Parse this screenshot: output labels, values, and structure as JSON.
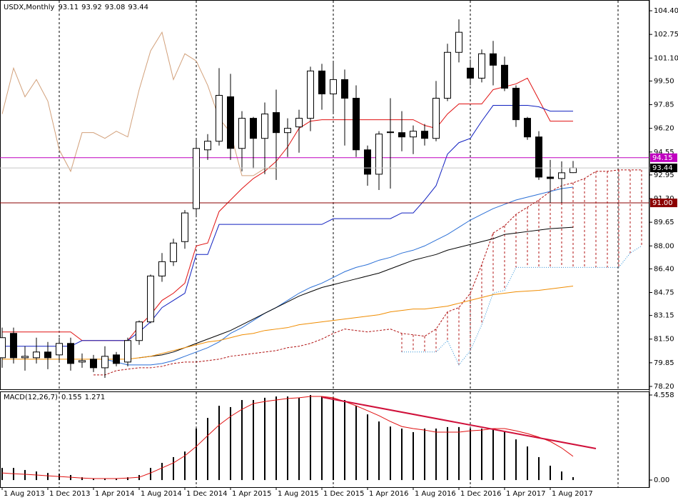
{
  "chart_data": {
    "type": "candlestick",
    "title": "USDX,Monthly",
    "categories": [
      "1 Aug 2013",
      null,
      null,
      null,
      "1 Dec 2013",
      null,
      null,
      null,
      "1 Apr 2014",
      null,
      null,
      null,
      "1 Aug 2014",
      null,
      null,
      null,
      "1 Dec 2014",
      null,
      null,
      null,
      "1 Apr 2015",
      null,
      null,
      null,
      "1 Aug 2015",
      null,
      null,
      null,
      "1 Dec 2015",
      null,
      null,
      null,
      "1 Apr 2016",
      null,
      null,
      null,
      "1 Aug 2016",
      null,
      null,
      null,
      "1 Dec 2016",
      null,
      null,
      null,
      "1 Apr 2017",
      null,
      null,
      null,
      "1 Aug 2017",
      null,
      null,
      null,
      null,
      null,
      null,
      null,
      null
    ],
    "candles": [
      [
        80.2,
        82.3,
        79.5,
        81.6
      ],
      [
        81.9,
        82.3,
        79.8,
        80.2
      ],
      [
        80.2,
        81.0,
        79.3,
        80.3
      ],
      [
        80.2,
        81.6,
        79.8,
        80.6
      ],
      [
        80.6,
        81.3,
        79.4,
        80.2
      ],
      [
        80.4,
        81.6,
        80.0,
        81.2
      ],
      [
        81.2,
        81.6,
        79.3,
        79.8
      ],
      [
        79.9,
        80.5,
        79.5,
        80.0
      ],
      [
        80.1,
        80.4,
        79.2,
        79.5
      ],
      [
        79.5,
        81.0,
        78.8,
        80.3
      ],
      [
        80.4,
        80.6,
        79.6,
        79.8
      ],
      [
        79.9,
        81.6,
        79.6,
        81.4
      ],
      [
        81.4,
        82.8,
        81.1,
        82.7
      ],
      [
        82.7,
        86.0,
        82.6,
        85.9
      ],
      [
        85.9,
        87.5,
        85.5,
        86.9
      ],
      [
        86.9,
        88.5,
        86.6,
        88.2
      ],
      [
        88.3,
        90.5,
        87.8,
        90.3
      ],
      [
        90.6,
        95.5,
        90.0,
        94.8
      ],
      [
        94.7,
        95.8,
        94.0,
        95.3
      ],
      [
        95.3,
        100.4,
        95.0,
        98.5
      ],
      [
        98.4,
        100.0,
        94.0,
        94.8
      ],
      [
        94.8,
        97.4,
        93.2,
        96.9
      ],
      [
        96.9,
        97.0,
        93.4,
        95.5
      ],
      [
        95.5,
        98.0,
        93.0,
        97.2
      ],
      [
        97.3,
        98.9,
        92.6,
        95.9
      ],
      [
        95.9,
        96.9,
        94.2,
        96.2
      ],
      [
        96.3,
        97.5,
        94.5,
        96.9
      ],
      [
        96.9,
        100.5,
        96.0,
        100.2
      ],
      [
        100.2,
        100.7,
        97.5,
        98.6
      ],
      [
        98.6,
        100.9,
        97.3,
        99.6
      ],
      [
        99.6,
        100.3,
        95.0,
        98.3
      ],
      [
        98.3,
        99.2,
        94.2,
        94.7
      ],
      [
        94.7,
        95.0,
        92.2,
        93.0
      ],
      [
        93.0,
        96.0,
        91.9,
        95.8
      ],
      [
        95.9,
        98.3,
        92.0,
        95.95
      ],
      [
        95.9,
        97.4,
        94.6,
        95.6
      ],
      [
        95.6,
        96.4,
        94.4,
        96.0
      ],
      [
        96.0,
        96.5,
        95.0,
        95.5
      ],
      [
        95.5,
        99.5,
        95.3,
        98.3
      ],
      [
        98.3,
        102.1,
        98.1,
        101.5
      ],
      [
        101.5,
        103.8,
        100.8,
        102.9
      ],
      [
        100.4,
        101.0,
        99.2,
        99.7
      ],
      [
        99.7,
        101.7,
        99.4,
        101.4
      ],
      [
        101.4,
        102.3,
        99.2,
        100.6
      ],
      [
        100.6,
        101.2,
        98.8,
        99.0
      ],
      [
        99.0,
        99.2,
        96.3,
        96.8
      ],
      [
        96.9,
        97.0,
        95.4,
        95.6
      ],
      [
        95.6,
        96.0,
        92.6,
        92.8
      ],
      [
        92.8,
        94.0,
        91.0,
        92.7
      ],
      [
        92.7,
        93.9,
        91.0,
        93.1
      ],
      [
        93.11,
        93.92,
        93.08,
        93.44
      ],
      null,
      null,
      null,
      null,
      null,
      null
    ],
    "ylim": [
      78.0,
      105.15
    ],
    "yticks": [
      {
        "value": 104.4,
        "label": "104.40"
      },
      102.75,
      {
        "value": 101.1,
        "label": "101.10"
      },
      {
        "value": 99.5,
        "label": "99.50"
      },
      97.85,
      {
        "value": 96.2,
        "label": "96.20"
      },
      94.55,
      92.95,
      {
        "value": 91.3,
        "label": "91.30"
      },
      89.65,
      {
        "value": 88,
        "label": "88.00"
      },
      {
        "value": 86.4,
        "label": "86.40"
      },
      84.75,
      83.15,
      {
        "value": 81.5,
        "label": "81.50"
      },
      79.85,
      {
        "value": 78.2,
        "label": "78.20"
      }
    ],
    "hlines": [
      {
        "value": 94.15,
        "color": "#c000c0"
      },
      {
        "value": 91,
        "label": "91.00",
        "color": "#8b0000"
      }
    ],
    "lines": [
      {
        "color": "#e01010",
        "values": [
          82.0,
          82.0,
          82.0,
          82.0,
          82.0,
          82.0,
          82.0,
          81.4,
          81.4,
          81.4,
          81.4,
          81.4,
          82.4,
          83.2,
          84.2,
          84.7,
          85.4,
          88.0,
          88.2,
          90.4,
          91.2,
          92.0,
          92.7,
          93.2,
          93.9,
          94.9,
          96.2,
          96.7,
          96.8,
          96.8,
          96.8,
          96.8,
          96.8,
          96.8,
          96.8,
          96.8,
          96.8,
          96.4,
          96.2,
          97.2,
          97.9,
          97.9,
          97.9,
          98.9,
          99.1,
          99.3,
          99.7,
          98.2,
          96.7,
          96.7,
          96.7,
          null,
          null,
          null,
          null,
          null,
          null
        ]
      },
      {
        "color": "#1020c0",
        "values": [
          81.0,
          81.0,
          81.0,
          81.0,
          81.0,
          81.0,
          81.0,
          81.4,
          81.4,
          81.4,
          81.4,
          81.4,
          82.0,
          82.7,
          83.7,
          84.2,
          84.7,
          87.4,
          87.4,
          89.5,
          89.5,
          89.5,
          89.5,
          89.5,
          89.5,
          89.5,
          89.5,
          89.5,
          89.5,
          89.9,
          89.9,
          89.9,
          89.9,
          89.9,
          89.9,
          90.3,
          90.3,
          91.2,
          92.2,
          94.4,
          95.2,
          95.5,
          96.7,
          97.8,
          97.8,
          97.8,
          97.8,
          97.7,
          97.4,
          97.4,
          97.4,
          null,
          null,
          null,
          null,
          null,
          null
        ]
      },
      {
        "color": "#d2a07a",
        "values": [
          97.2,
          100.4,
          98.4,
          99.6,
          98.1,
          94.7,
          93.2,
          95.9,
          95.9,
          95.5,
          96.0,
          95.6,
          98.9,
          101.6,
          102.9,
          99.6,
          101.4,
          100.9,
          99.2,
          96.9,
          95.9,
          92.9,
          92.9,
          93.4,
          93.4,
          null,
          null,
          null,
          null,
          null,
          null,
          null,
          null,
          null,
          null,
          null,
          null,
          null,
          null,
          null,
          null,
          null,
          null,
          null,
          null,
          null,
          null,
          null,
          null,
          null,
          null,
          null,
          null,
          null,
          null,
          null,
          null
        ]
      },
      {
        "color": "#2a6fd6",
        "values": [
          null,
          null,
          null,
          null,
          null,
          null,
          null,
          null,
          null,
          80.1,
          79.9,
          79.7,
          79.7,
          79.7,
          79.8,
          80.0,
          80.3,
          80.6,
          80.9,
          81.3,
          81.9,
          82.3,
          82.8,
          83.3,
          83.7,
          84.2,
          84.7,
          85.1,
          85.4,
          85.8,
          86.2,
          86.5,
          86.7,
          87.0,
          87.2,
          87.5,
          87.7,
          88.0,
          88.4,
          88.8,
          89.3,
          89.8,
          90.2,
          90.6,
          90.9,
          91.2,
          91.4,
          91.6,
          91.8,
          92.0,
          92.1,
          null,
          null,
          null,
          null,
          null,
          null
        ]
      },
      {
        "color": "#000000",
        "values": [
          null,
          null,
          null,
          null,
          null,
          null,
          null,
          null,
          null,
          null,
          null,
          null,
          80.2,
          80.3,
          80.4,
          80.6,
          80.9,
          81.2,
          81.5,
          81.8,
          82.1,
          82.5,
          82.9,
          83.3,
          83.7,
          84.1,
          84.5,
          84.8,
          85.1,
          85.3,
          85.5,
          85.7,
          85.9,
          86.1,
          86.4,
          86.7,
          87.0,
          87.2,
          87.4,
          87.7,
          87.9,
          88.1,
          88.3,
          88.5,
          88.8,
          88.9,
          89.0,
          89.1,
          89.2,
          89.25,
          89.3,
          null,
          null,
          null,
          null,
          null,
          null
        ]
      },
      {
        "color": "#f08c00",
        "values": [
          80.1,
          80.1,
          80.1,
          80.1,
          80.1,
          80.1,
          80.1,
          80.1,
          80.1,
          80.1,
          80.1,
          80.1,
          80.2,
          80.3,
          80.5,
          80.7,
          80.9,
          81.1,
          81.3,
          81.4,
          81.6,
          81.8,
          81.9,
          82.1,
          82.2,
          82.3,
          82.5,
          82.6,
          82.7,
          82.8,
          82.9,
          83.0,
          83.1,
          83.2,
          83.4,
          83.5,
          83.6,
          83.6,
          83.7,
          83.8,
          84.0,
          84.2,
          84.4,
          84.6,
          84.7,
          84.8,
          84.85,
          84.9,
          85.0,
          85.1,
          85.2,
          null,
          null,
          null,
          null,
          null,
          null
        ]
      }
    ],
    "cloud": {
      "color_a": "#b01010",
      "color_b": "#2a8fd6",
      "span_a": [
        null,
        null,
        null,
        null,
        null,
        null,
        null,
        null,
        79.0,
        79.0,
        79.3,
        79.4,
        79.5,
        79.5,
        79.6,
        79.8,
        79.9,
        79.9,
        80.0,
        80.1,
        80.3,
        80.4,
        80.5,
        80.6,
        80.7,
        80.9,
        81.0,
        81.2,
        81.5,
        81.9,
        82.2,
        82.1,
        82.0,
        82.1,
        82.2,
        81.9,
        81.8,
        81.7,
        82.2,
        83.4,
        83.7,
        84.7,
        86.7,
        88.9,
        89.4,
        90.2,
        90.7,
        91.2,
        91.8,
        92.2,
        92.4,
        92.7,
        93.2,
        93.2,
        93.3,
        93.3,
        93.3
      ],
      "span_b": [
        null,
        null,
        null,
        null,
        null,
        null,
        null,
        null,
        null,
        null,
        null,
        null,
        null,
        null,
        null,
        null,
        null,
        null,
        null,
        null,
        null,
        null,
        null,
        null,
        null,
        null,
        null,
        null,
        null,
        null,
        null,
        null,
        null,
        null,
        null,
        80.6,
        80.6,
        80.6,
        80.6,
        81.4,
        79.7,
        80.7,
        82.5,
        84.7,
        84.9,
        86.5,
        86.5,
        86.5,
        86.5,
        86.5,
        86.5,
        86.5,
        86.5,
        86.5,
        86.5,
        87.5,
        88.0
      ]
    },
    "macd": {
      "label": "MACD(12,26,7)",
      "color": "#000000",
      "signal_color": "#e01010",
      "histogram": [
        0.65,
        0.65,
        0.54,
        0.46,
        0.38,
        0.34,
        0.27,
        0.15,
        0.08,
        0.08,
        0.08,
        0.15,
        0.27,
        0.65,
        0.92,
        1.23,
        1.53,
        2.76,
        3.33,
        3.98,
        3.91,
        4.29,
        4.29,
        4.41,
        4.48,
        4.48,
        4.41,
        4.558,
        4.48,
        4.41,
        4.29,
        3.98,
        3.52,
        3.14,
        2.87,
        2.76,
        2.57,
        2.76,
        2.76,
        2.84,
        2.84,
        2.76,
        2.76,
        2.76,
        2.57,
        2.18,
        1.8,
        1.23,
        0.77,
        0.46,
        0.155,
        null,
        null,
        null,
        null,
        null,
        null
      ],
      "signal": [
        0.38,
        0.34,
        0.31,
        0.27,
        0.23,
        0.19,
        0.15,
        0.11,
        0.08,
        0.08,
        0.08,
        0.11,
        0.15,
        0.38,
        0.65,
        0.92,
        1.3,
        1.8,
        2.38,
        2.95,
        3.41,
        3.79,
        4.1,
        4.21,
        4.29,
        4.37,
        4.41,
        4.48,
        4.48,
        4.41,
        4.21,
        3.98,
        3.72,
        3.45,
        3.14,
        2.87,
        2.76,
        2.68,
        2.57,
        2.57,
        2.57,
        2.64,
        2.68,
        2.76,
        2.76,
        2.64,
        2.49,
        2.3,
        2.07,
        1.72,
        1.271,
        null,
        null,
        null,
        null,
        null,
        null
      ],
      "ylim": [
        -0.38,
        4.75
      ],
      "yticks": [
        4.558,
        {
          "value": 0,
          "label": "0.00"
        }
      ]
    }
  }
}
